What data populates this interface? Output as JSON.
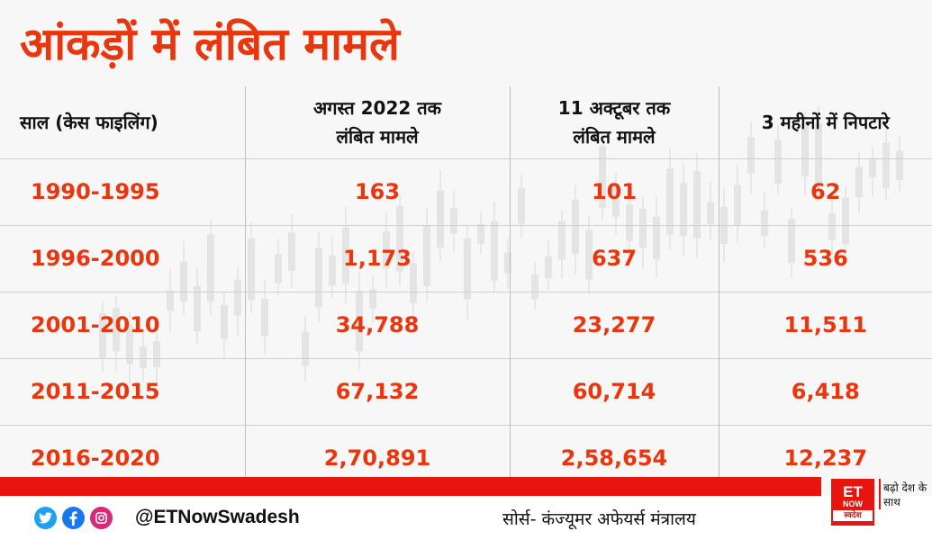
{
  "title": "आंकड़ों में लंबित मामले",
  "chart_data": {
    "type": "table",
    "title": "आंकड़ों में लंबित मामले",
    "columns": [
      "साल (केस फाइलिंग)",
      "अगस्त 2022 तक लंबित मामले",
      "11 अक्टूबर तक लंबित मामले",
      "3 महीनों में निपटारे"
    ],
    "column_lines": [
      [
        "साल (केस फाइलिंग)"
      ],
      [
        "अगस्त 2022 तक",
        "लंबित मामले"
      ],
      [
        "11 अक्टूबर तक",
        "लंबित मामले"
      ],
      [
        "3 महीनों में निपटारे"
      ]
    ],
    "rows": [
      [
        "1990-1995",
        "163",
        "101",
        "62"
      ],
      [
        "1996-2000",
        "1,173",
        "637",
        "536"
      ],
      [
        "2001-2010",
        "34,788",
        "23,277",
        "11,511"
      ],
      [
        "2011-2015",
        "67,132",
        "60,714",
        "6,418"
      ],
      [
        "2016-2020",
        "2,70,891",
        "2,58,654",
        "12,237"
      ]
    ]
  },
  "footer": {
    "handle": "@ETNowSwadesh",
    "source": "सोर्स- कंज्यूमर अफेयर्स मंत्रालय",
    "icons": [
      "twitter-icon",
      "facebook-icon",
      "instagram-icon"
    ]
  },
  "logo": {
    "et": "ET",
    "now": "NOW",
    "swadesh": "स्वदेश",
    "tagline": "बढ़ो देश के साथ"
  },
  "colors": {
    "accent": "#e8360e",
    "bar": "#e8150e",
    "twitter": "#1da1f2",
    "facebook": "#1877f2",
    "instagram": "#d62976"
  }
}
